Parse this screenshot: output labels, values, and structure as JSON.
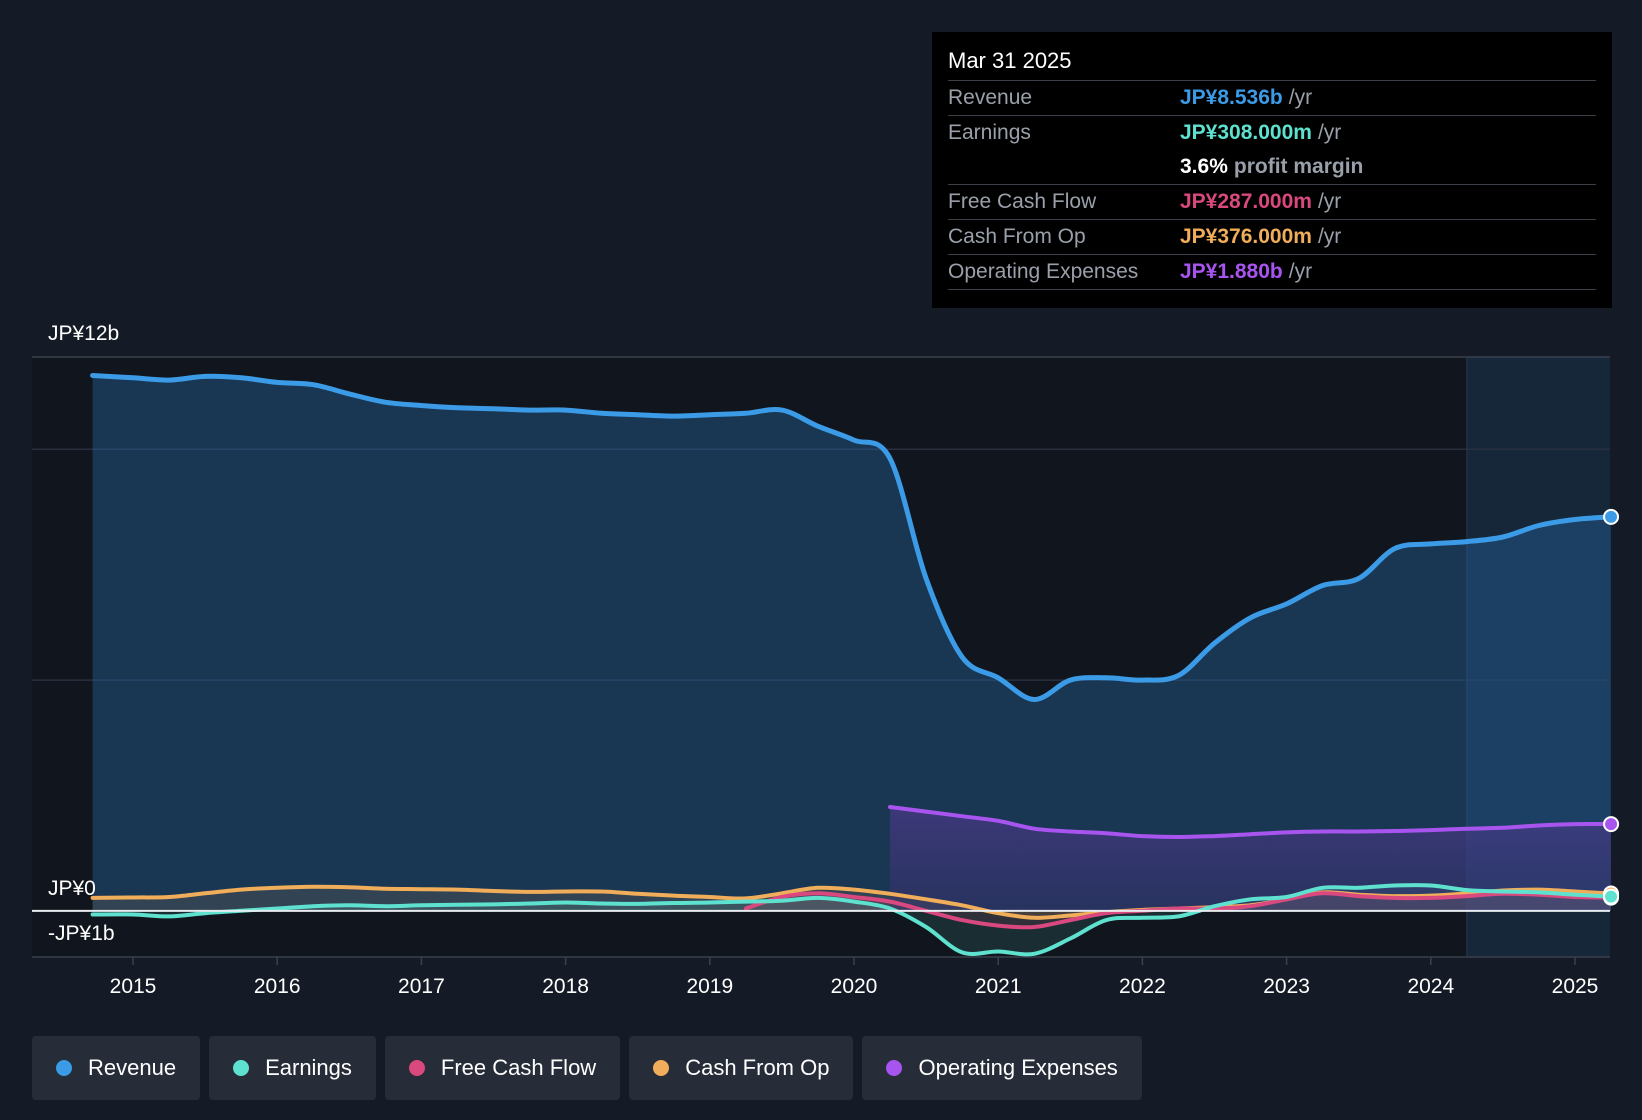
{
  "chart_data": {
    "type": "area",
    "y_axis": {
      "top_label": "JP¥12b",
      "zero_label": "JP¥0",
      "bottom_label": "-JP¥1b",
      "ylim": [
        -1,
        12
      ]
    },
    "x_ticks": [
      "2015",
      "2016",
      "2017",
      "2018",
      "2019",
      "2020",
      "2021",
      "2022",
      "2023",
      "2024",
      "2025"
    ],
    "x_range": [
      2014.75,
      2025.25
    ],
    "series": [
      {
        "name": "Revenue",
        "color": "#3b9be6",
        "fill": true,
        "points": [
          [
            2014.72,
            11.6
          ],
          [
            2015.0,
            11.55
          ],
          [
            2015.25,
            11.5
          ],
          [
            2015.5,
            11.58
          ],
          [
            2015.75,
            11.55
          ],
          [
            2016.0,
            11.45
          ],
          [
            2016.25,
            11.4
          ],
          [
            2016.5,
            11.2
          ],
          [
            2016.75,
            11.02
          ],
          [
            2017.0,
            10.95
          ],
          [
            2017.25,
            10.9
          ],
          [
            2017.5,
            10.88
          ],
          [
            2017.75,
            10.85
          ],
          [
            2018.0,
            10.85
          ],
          [
            2018.25,
            10.78
          ],
          [
            2018.5,
            10.75
          ],
          [
            2018.75,
            10.72
          ],
          [
            2019.0,
            10.75
          ],
          [
            2019.25,
            10.78
          ],
          [
            2019.5,
            10.85
          ],
          [
            2019.75,
            10.5
          ],
          [
            2020.0,
            10.2
          ],
          [
            2020.25,
            9.8
          ],
          [
            2020.5,
            7.2
          ],
          [
            2020.75,
            5.5
          ],
          [
            2021.0,
            5.05
          ],
          [
            2021.25,
            4.58
          ],
          [
            2021.5,
            5.0
          ],
          [
            2021.75,
            5.05
          ],
          [
            2022.0,
            5.0
          ],
          [
            2022.25,
            5.1
          ],
          [
            2022.5,
            5.8
          ],
          [
            2022.75,
            6.35
          ],
          [
            2023.0,
            6.65
          ],
          [
            2023.25,
            7.05
          ],
          [
            2023.5,
            7.2
          ],
          [
            2023.75,
            7.85
          ],
          [
            2024.0,
            7.95
          ],
          [
            2024.25,
            8.0
          ],
          [
            2024.5,
            8.1
          ],
          [
            2024.75,
            8.35
          ],
          [
            2025.0,
            8.48
          ],
          [
            2025.25,
            8.536
          ]
        ]
      },
      {
        "name": "Earnings",
        "color": "#5ee2cf",
        "fill": false,
        "points": [
          [
            2014.72,
            -0.08
          ],
          [
            2015.0,
            -0.08
          ],
          [
            2015.25,
            -0.12
          ],
          [
            2015.5,
            -0.05
          ],
          [
            2015.75,
            0.0
          ],
          [
            2016.0,
            0.05
          ],
          [
            2016.25,
            0.1
          ],
          [
            2016.5,
            0.12
          ],
          [
            2016.75,
            0.1
          ],
          [
            2017.0,
            0.12
          ],
          [
            2017.25,
            0.13
          ],
          [
            2017.5,
            0.14
          ],
          [
            2017.75,
            0.16
          ],
          [
            2018.0,
            0.18
          ],
          [
            2018.25,
            0.16
          ],
          [
            2018.5,
            0.15
          ],
          [
            2018.75,
            0.17
          ],
          [
            2019.0,
            0.18
          ],
          [
            2019.25,
            0.2
          ],
          [
            2019.5,
            0.22
          ],
          [
            2019.75,
            0.28
          ],
          [
            2020.0,
            0.2
          ],
          [
            2020.25,
            0.05
          ],
          [
            2020.5,
            -0.35
          ],
          [
            2020.75,
            -0.9
          ],
          [
            2021.0,
            -0.88
          ],
          [
            2021.25,
            -0.93
          ],
          [
            2021.5,
            -0.6
          ],
          [
            2021.75,
            -0.2
          ],
          [
            2022.0,
            -0.15
          ],
          [
            2022.25,
            -0.12
          ],
          [
            2022.5,
            0.1
          ],
          [
            2022.75,
            0.25
          ],
          [
            2023.0,
            0.3
          ],
          [
            2023.25,
            0.5
          ],
          [
            2023.5,
            0.5
          ],
          [
            2023.75,
            0.55
          ],
          [
            2024.0,
            0.55
          ],
          [
            2024.25,
            0.45
          ],
          [
            2024.5,
            0.42
          ],
          [
            2024.75,
            0.4
          ],
          [
            2025.0,
            0.35
          ],
          [
            2025.25,
            0.308
          ]
        ]
      },
      {
        "name": "Free Cash Flow",
        "color": "#d9487e",
        "fill": false,
        "points": [
          [
            2019.25,
            0.05
          ],
          [
            2019.5,
            0.3
          ],
          [
            2019.75,
            0.38
          ],
          [
            2020.0,
            0.3
          ],
          [
            2020.25,
            0.2
          ],
          [
            2020.5,
            0.0
          ],
          [
            2020.75,
            -0.2
          ],
          [
            2021.0,
            -0.32
          ],
          [
            2021.25,
            -0.35
          ],
          [
            2021.5,
            -0.2
          ],
          [
            2021.75,
            -0.05
          ],
          [
            2022.0,
            0.0
          ],
          [
            2022.25,
            0.05
          ],
          [
            2022.5,
            0.05
          ],
          [
            2022.75,
            0.1
          ],
          [
            2023.0,
            0.25
          ],
          [
            2023.25,
            0.38
          ],
          [
            2023.5,
            0.32
          ],
          [
            2023.75,
            0.28
          ],
          [
            2024.0,
            0.28
          ],
          [
            2024.25,
            0.32
          ],
          [
            2024.5,
            0.37
          ],
          [
            2024.75,
            0.35
          ],
          [
            2025.0,
            0.3
          ],
          [
            2025.25,
            0.287
          ]
        ]
      },
      {
        "name": "Cash From Op",
        "color": "#f0ad5a",
        "fill": false,
        "points": [
          [
            2014.72,
            0.28
          ],
          [
            2015.0,
            0.29
          ],
          [
            2015.25,
            0.3
          ],
          [
            2015.5,
            0.38
          ],
          [
            2015.75,
            0.46
          ],
          [
            2016.0,
            0.5
          ],
          [
            2016.25,
            0.52
          ],
          [
            2016.5,
            0.51
          ],
          [
            2016.75,
            0.48
          ],
          [
            2017.0,
            0.47
          ],
          [
            2017.25,
            0.46
          ],
          [
            2017.5,
            0.43
          ],
          [
            2017.75,
            0.41
          ],
          [
            2018.0,
            0.42
          ],
          [
            2018.25,
            0.42
          ],
          [
            2018.5,
            0.37
          ],
          [
            2018.75,
            0.33
          ],
          [
            2019.0,
            0.3
          ],
          [
            2019.25,
            0.27
          ],
          [
            2019.5,
            0.38
          ],
          [
            2019.75,
            0.5
          ],
          [
            2020.0,
            0.46
          ],
          [
            2020.25,
            0.37
          ],
          [
            2020.5,
            0.25
          ],
          [
            2020.75,
            0.12
          ],
          [
            2021.0,
            -0.05
          ],
          [
            2021.25,
            -0.15
          ],
          [
            2021.5,
            -0.1
          ],
          [
            2021.75,
            -0.03
          ],
          [
            2022.0,
            0.02
          ],
          [
            2022.25,
            0.05
          ],
          [
            2022.5,
            0.08
          ],
          [
            2022.75,
            0.12
          ],
          [
            2023.0,
            0.25
          ],
          [
            2023.25,
            0.4
          ],
          [
            2023.5,
            0.35
          ],
          [
            2023.75,
            0.32
          ],
          [
            2024.0,
            0.33
          ],
          [
            2024.25,
            0.38
          ],
          [
            2024.5,
            0.44
          ],
          [
            2024.75,
            0.46
          ],
          [
            2025.0,
            0.42
          ],
          [
            2025.25,
            0.376
          ]
        ]
      },
      {
        "name": "Operating Expenses",
        "color": "#a855f0",
        "fill": true,
        "points": [
          [
            2020.25,
            2.25
          ],
          [
            2020.5,
            2.15
          ],
          [
            2020.75,
            2.05
          ],
          [
            2021.0,
            1.95
          ],
          [
            2021.25,
            1.78
          ],
          [
            2021.5,
            1.72
          ],
          [
            2021.75,
            1.68
          ],
          [
            2022.0,
            1.62
          ],
          [
            2022.25,
            1.6
          ],
          [
            2022.5,
            1.62
          ],
          [
            2022.75,
            1.66
          ],
          [
            2023.0,
            1.7
          ],
          [
            2023.25,
            1.72
          ],
          [
            2023.5,
            1.72
          ],
          [
            2023.75,
            1.73
          ],
          [
            2024.0,
            1.75
          ],
          [
            2024.25,
            1.78
          ],
          [
            2024.5,
            1.8
          ],
          [
            2024.75,
            1.85
          ],
          [
            2025.0,
            1.88
          ],
          [
            2025.25,
            1.88
          ]
        ]
      }
    ],
    "highlight_from": 2024.25,
    "tooltip": {
      "date": "Mar 31 2025",
      "revenue_label": "Revenue",
      "revenue_value": "JP¥8.536b",
      "earnings_label": "Earnings",
      "earnings_value": "JP¥308.000m",
      "profit_margin_value": "3.6%",
      "profit_margin_text": "profit margin",
      "fcf_label": "Free Cash Flow",
      "fcf_value": "JP¥287.000m",
      "cfo_label": "Cash From Op",
      "cfo_value": "JP¥376.000m",
      "opex_label": "Operating Expenses",
      "opex_value": "JP¥1.880b",
      "unit": "/yr"
    }
  },
  "legend": [
    {
      "label": "Revenue",
      "color": "#3b9be6"
    },
    {
      "label": "Earnings",
      "color": "#5ee2cf"
    },
    {
      "label": "Free Cash Flow",
      "color": "#d9487e"
    },
    {
      "label": "Cash From Op",
      "color": "#f0ad5a"
    },
    {
      "label": "Operating Expenses",
      "color": "#a855f0"
    }
  ]
}
